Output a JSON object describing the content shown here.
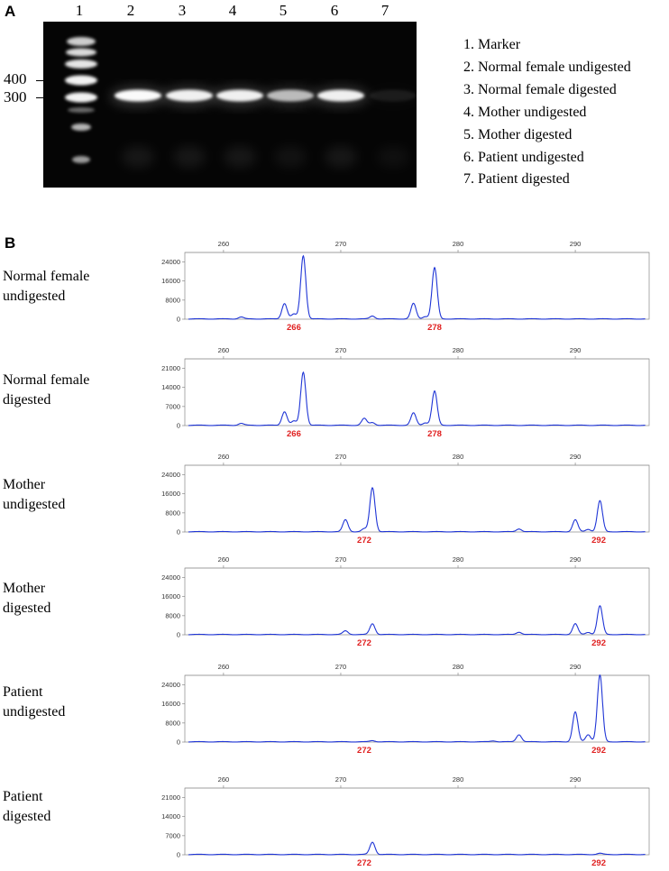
{
  "panel_a": {
    "letter": "A",
    "lane_numbers": [
      "1",
      "2",
      "3",
      "4",
      "5",
      "6",
      "7"
    ],
    "size_labels": [
      "400",
      "300"
    ],
    "legend": [
      "1. Marker",
      "2. Normal female undigested",
      "3. Normal female digested",
      "4. Mother undigested",
      "5. Mother digested",
      "6. Patient undigested",
      "7. Patient digested"
    ],
    "band_intensity": [
      1.0,
      0.95,
      0.95,
      0.7,
      0.95,
      0.08
    ]
  },
  "panel_b": {
    "letter": "B",
    "traces": [
      {
        "title_lines": [
          "Normal female",
          "undigested"
        ],
        "x_ticks": [
          "260",
          "270",
          "280",
          "290"
        ],
        "y_ticks": [
          "24000",
          "16000",
          "8000",
          "0"
        ],
        "y_max": 28000,
        "allele_labels": [
          "266",
          "278"
        ],
        "peaks": [
          [
            261.5,
            800
          ],
          [
            265.2,
            6500
          ],
          [
            266.0,
            2000
          ],
          [
            266.8,
            26500
          ],
          [
            272.7,
            1200
          ],
          [
            276.2,
            6500
          ],
          [
            277.2,
            1000
          ],
          [
            278.0,
            21500
          ]
        ]
      },
      {
        "title_lines": [
          "Normal female",
          "digested"
        ],
        "x_ticks": [
          "260",
          "270",
          "280",
          "290"
        ],
        "y_ticks": [
          "21000",
          "14000",
          "7000",
          "0"
        ],
        "y_max": 24500,
        "allele_labels": [
          "266",
          "278"
        ],
        "peaks": [
          [
            261.5,
            700
          ],
          [
            265.2,
            5000
          ],
          [
            266.0,
            1500
          ],
          [
            266.8,
            19500
          ],
          [
            272.0,
            2500
          ],
          [
            272.7,
            1000
          ],
          [
            276.2,
            4500
          ],
          [
            277.2,
            900
          ],
          [
            278.0,
            12500
          ]
        ]
      },
      {
        "title_lines": [
          "Mother",
          "undigested"
        ],
        "x_ticks": [
          "260",
          "270",
          "280",
          "290"
        ],
        "y_ticks": [
          "24000",
          "16000",
          "8000",
          "0"
        ],
        "y_max": 28000,
        "allele_labels": [
          "272",
          "292"
        ],
        "peaks": [
          [
            270.4,
            5000
          ],
          [
            272.0,
            1200
          ],
          [
            272.7,
            18500
          ],
          [
            285.2,
            1200
          ],
          [
            290.0,
            5000
          ],
          [
            291.1,
            1000
          ],
          [
            292.1,
            13000
          ]
        ]
      },
      {
        "title_lines": [
          "Mother",
          "digested"
        ],
        "x_ticks": [
          "260",
          "270",
          "280",
          "290"
        ],
        "y_ticks": [
          "24000",
          "16000",
          "8000",
          "0"
        ],
        "y_max": 28000,
        "allele_labels": [
          "272",
          "292"
        ],
        "peaks": [
          [
            270.4,
            1500
          ],
          [
            272.7,
            4500
          ],
          [
            285.2,
            1000
          ],
          [
            290.0,
            4500
          ],
          [
            291.1,
            900
          ],
          [
            292.1,
            12000
          ]
        ]
      },
      {
        "title_lines": [
          "Patient",
          "undigested"
        ],
        "x_ticks": [
          "260",
          "270",
          "280",
          "290"
        ],
        "y_ticks": [
          "24000",
          "16000",
          "8000",
          "0"
        ],
        "y_max": 28000,
        "allele_labels": [
          "272",
          "292"
        ],
        "peaks": [
          [
            272.7,
            500
          ],
          [
            283.0,
            400
          ],
          [
            285.2,
            3000
          ],
          [
            290.0,
            12500
          ],
          [
            291.1,
            3000
          ],
          [
            292.1,
            28000
          ]
        ]
      },
      {
        "title_lines": [
          "Patient",
          "digested"
        ],
        "x_ticks": [
          "260",
          "270",
          "280",
          "290"
        ],
        "y_ticks": [
          "21000",
          "14000",
          "7000",
          "0"
        ],
        "y_max": 24500,
        "allele_labels": [
          "272",
          "292"
        ],
        "peaks": [
          [
            272.7,
            4500
          ],
          [
            292.1,
            400
          ]
        ]
      }
    ]
  },
  "colors": {
    "trace": "#1f35d6",
    "allele": "#e02020",
    "gel_bg": "#050505"
  }
}
